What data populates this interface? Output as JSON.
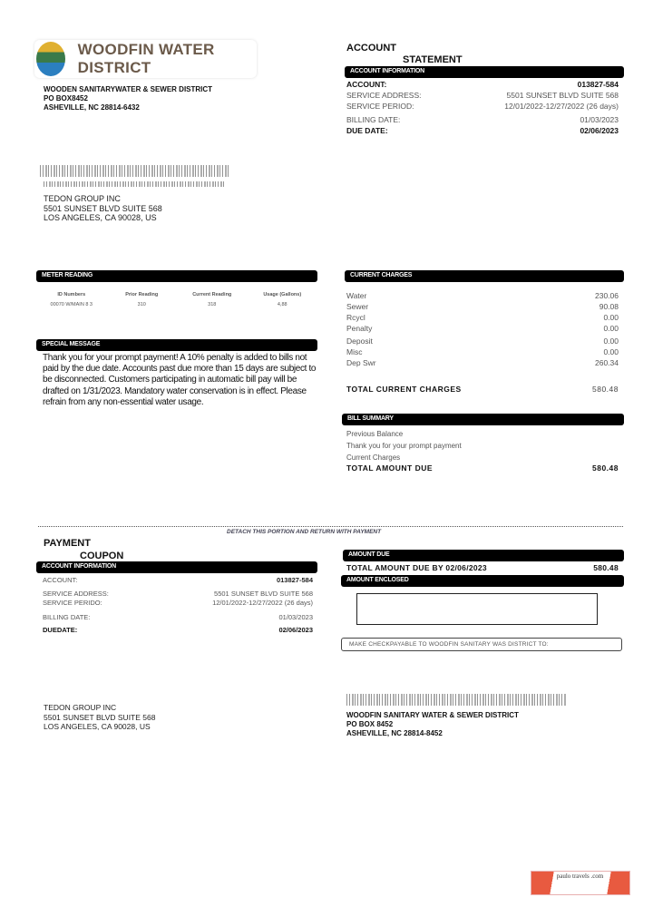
{
  "header": {
    "logo_text": "WOODFIN WATER DISTRICT",
    "sender": [
      "WOODEN SANITARYWATER & SEWER DISTRICT",
      "PO BOX8452",
      "ASHEVILLE, NC 28814-6432"
    ],
    "recipient": [
      "TEDON GROUP INC",
      "5501 SUNSET BLVD SUITE 568",
      "LOS ANGELES, CA 90028, US"
    ]
  },
  "statement": {
    "title1": "ACCOUNT",
    "title2": "STATEMENT",
    "section": "ACCOUNT INFORMATION",
    "rows": [
      {
        "label": "ACCOUNT:",
        "value": "013827-584"
      },
      {
        "label": "SERVICE ADDRESS:",
        "value": "5501 SUNSET BLVD SUITE 568"
      },
      {
        "label": "SERVICE PERIOD:",
        "value": "12/01/2022-12/27/2022 (26 days)"
      },
      {
        "label": "BILLING DATE:",
        "value": "01/03/2023"
      },
      {
        "label": "DUE DATE:",
        "value": "02/06/2023"
      }
    ]
  },
  "meter": {
    "section": "METER READING",
    "headers": [
      "ID Numbers",
      "Prior Reading",
      "Current Reading",
      "Usage (Gallons)"
    ],
    "values": [
      "00070 W/MAIN 8 3",
      "310",
      "318",
      "4,88"
    ]
  },
  "message": {
    "section": "SPECIAL MESSAGE",
    "text": "Thank you for your prompt payment! A 10% penalty is added to bills not paid by the due date. Accounts past due more than 15 days are subject to be disconnected. Customers participating in automatic bill pay will be drafted on 1/31/2023. Mandatory water conservation is in effect. Please refrain from any non-essential water usage."
  },
  "charges": {
    "section": "CURRENT CHARGES",
    "items": [
      {
        "label": "Water",
        "value": "230.06"
      },
      {
        "label": "Sewer",
        "value": "90.08"
      },
      {
        "label": "Rcycl",
        "value": "0.00"
      },
      {
        "label": "Penalty",
        "value": "0.00"
      },
      {
        "label": "Deposit",
        "value": "0.00"
      },
      {
        "label": "Misc",
        "value": "0.00"
      },
      {
        "label": "Dep Swr",
        "value": "260.34"
      }
    ],
    "total_label": "TOTAL CURRENT CHARGES",
    "total": "580.48"
  },
  "summary": {
    "section": "BILL SUMMARY",
    "items": [
      "Previous Balance",
      "Thank you for your prompt payment",
      "Current Charges"
    ],
    "total_label": "TOTAL AMOUNT DUE",
    "total": "580.48"
  },
  "coupon": {
    "detach": "DETACH THIS PORTION AND RETURN WITH PAYMENT",
    "title1": "PAYMENT",
    "title2": "COUPON",
    "section": "ACCOUNT INFORMATION",
    "rows": [
      {
        "label": "ACCOUNT:",
        "value": "013827-584"
      },
      {
        "label": "SERVICE ADDRESS:",
        "value": "5501 SUNSET BLVD SUITE 568"
      },
      {
        "label": "SERVICE PERIDO:",
        "value": "12/01/2022-12/27/2022 (26 days)"
      },
      {
        "label": "BILLING DATE:",
        "value": "01/03/2023"
      },
      {
        "label": "DUEDATE:",
        "value": "02/06/2023"
      }
    ],
    "amount_due_section": "AMOUNT DUE",
    "amount_due_label": "TOTAL AMOUNT DUE BY 02/06/2023",
    "amount_due": "580.48",
    "enclosed_section": "AMOUNT ENCLOSED",
    "payable": "MAKE CHECKPAYABLE TO WOODFIN SANITARY WAS DISTRICT TO:",
    "payer": [
      "TEDON GROUP INC",
      "5501 SUNSET BLVD SUITE 568",
      "LOS ANGELES, CA 90028, US"
    ],
    "remit": [
      "WOODFIN SANITARY WATER & SEWER DISTRICT",
      "PO BOX 8452",
      "ASHEVILLE, NC 28814-8452"
    ]
  },
  "watermark": "paulo travels .com"
}
